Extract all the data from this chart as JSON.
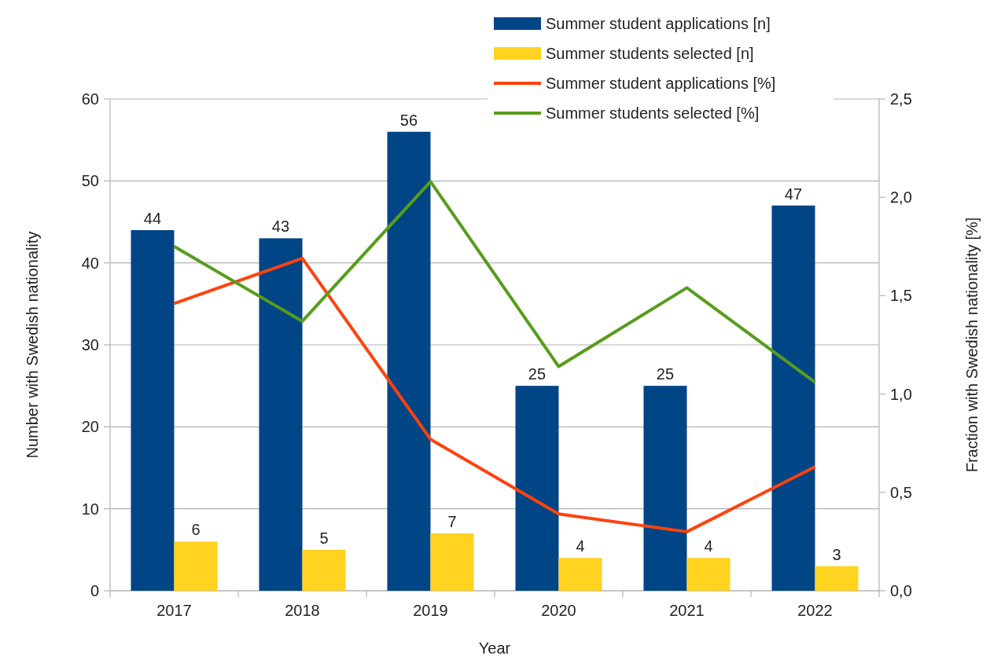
{
  "chart_data": {
    "type": "bar",
    "xlabel": "Year",
    "ylabel": "Number with Swedish nationality",
    "y2label": "Fraction with Swedish nationality [%]",
    "categories": [
      "2017",
      "2018",
      "2019",
      "2020",
      "2021",
      "2022"
    ],
    "series": [
      {
        "name": "Summer student applications [n]",
        "color": "#004586",
        "values": [
          44,
          43,
          56,
          25,
          25,
          47
        ],
        "value_labels": [
          "44",
          "43",
          "56",
          "25",
          "25",
          "47"
        ]
      },
      {
        "name": "Summer students selected [n]",
        "color": "#ffd320",
        "values": [
          6,
          5,
          7,
          4,
          4,
          3
        ],
        "value_labels": [
          "6",
          "5",
          "7",
          "4",
          "4",
          "3"
        ]
      },
      {
        "name": "Summer student applications [%]",
        "type": "line",
        "axis": "y2",
        "color": "#ff420e",
        "values": [
          1.46,
          1.69,
          0.77,
          0.39,
          0.3,
          0.63
        ]
      },
      {
        "name": "Summer students selected [%]",
        "type": "line",
        "axis": "y2",
        "color": "#579d1c",
        "values": [
          1.75,
          1.37,
          2.08,
          1.14,
          1.54,
          1.06
        ]
      }
    ],
    "ylim": [
      0,
      60
    ],
    "yticks": [
      0,
      10,
      20,
      30,
      40,
      50,
      60
    ],
    "y2lim": [
      0,
      2.5
    ],
    "y2ticks": [
      {
        "value": 0,
        "label": "0,0"
      },
      {
        "value": 0.5,
        "label": "0,5"
      },
      {
        "value": 1,
        "label": "1,0"
      },
      {
        "value": 1.5,
        "label": "1,5"
      },
      {
        "value": 2,
        "label": "2,0"
      },
      {
        "value": 2.5,
        "label": "2,5"
      }
    ],
    "grid": "y",
    "legend": "top right",
    "marker": "none",
    "line_style": "solid"
  }
}
